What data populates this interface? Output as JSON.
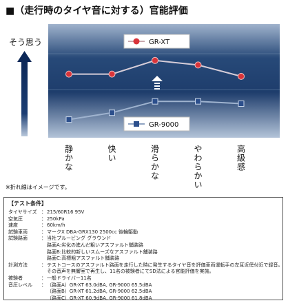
{
  "chart_data": {
    "type": "line",
    "title": "■（走行時のタイヤ音に対する）官能評価",
    "y_label": "そう思う",
    "categories": [
      "静かな",
      "快い",
      "滑らかな",
      "やわらかい",
      "高級感"
    ],
    "ylim": [
      0,
      5
    ],
    "series": [
      {
        "name": "GR-XT",
        "color": "#d9343a",
        "values": [
          2.8,
          2.8,
          3.4,
          3.2,
          2.7
        ]
      },
      {
        "name": "GR-9000",
        "color": "#2c4f8c",
        "values": [
          0.8,
          1.1,
          1.6,
          1.6,
          1.5
        ]
      }
    ],
    "note": "※折れ線はイメージです。"
  },
  "conditions": {
    "title": "【テスト条件】",
    "separator": "：",
    "rows": [
      {
        "label": "タイヤサイズ",
        "lines": [
          "215/60R16 95V"
        ]
      },
      {
        "label": "空気圧",
        "lines": [
          "250kPa"
        ]
      },
      {
        "label": "速度",
        "lines": [
          "60km/h"
        ]
      },
      {
        "label": "試験車両",
        "lines": [
          "マークX DBA-GRX130 2500cc 後輪駆動"
        ]
      },
      {
        "label": "試験路面",
        "lines": [
          "当社プルービング グラウンド",
          "路面A:劣化の進んだ粗いアスファルト舗装路",
          "路面B:比較的新しいスムーズなアスファルト舗装路",
          "路面C:高標粗アスファルト舗装路"
        ]
      },
      {
        "label": "計測方法",
        "lines": [
          "テストコースのアスファルト路面を走行した時に発生するタイヤ音を評価車両運転手の左耳近傍付近で録音。",
          "その音声を無響室で再生し、11名の被験者にてSD法による官能評価を実施。"
        ]
      },
      {
        "label": "被験者",
        "lines": [
          "一般ドライバー11名"
        ]
      },
      {
        "label": "音圧レベル",
        "lines": [
          "（路面A）GR-XT 63.0dBA, GR-9000 65.5dBA",
          "（路面B）GR-XT 61.2dBA, GR-9000 62.5dBA",
          "（路面C）GR-XT 60.9dBA, GR-9000 61.8dBA"
        ]
      }
    ]
  }
}
